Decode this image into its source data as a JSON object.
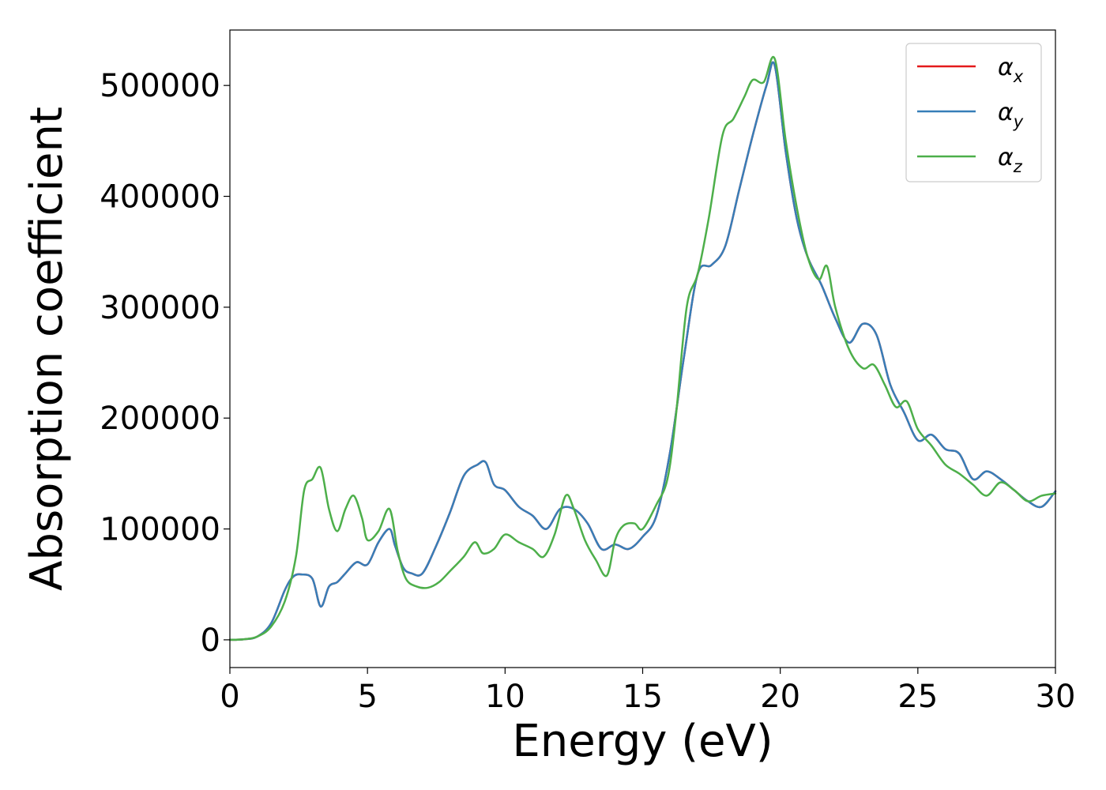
{
  "chart_data": {
    "type": "line",
    "title": "",
    "xlabel": "Energy (eV)",
    "ylabel": "Absorption coefficient",
    "xlim": [
      0,
      30
    ],
    "ylim": [
      -25000,
      550000
    ],
    "xticks": [
      0,
      5,
      10,
      15,
      20,
      25,
      30
    ],
    "xtick_labels": [
      "0",
      "5",
      "10",
      "15",
      "20",
      "25",
      "30"
    ],
    "yticks": [
      0,
      100000,
      200000,
      300000,
      400000,
      500000
    ],
    "ytick_labels": [
      "0",
      "100000",
      "200000",
      "300000",
      "400000",
      "500000"
    ],
    "grid": false,
    "legend_position": "top-right",
    "legend": [
      {
        "base": "α",
        "sub": "x",
        "color": "#e41a1c"
      },
      {
        "base": "α",
        "sub": "y",
        "color": "#377eb8"
      },
      {
        "base": "α",
        "sub": "z",
        "color": "#4daf4a"
      }
    ],
    "series": [
      {
        "name": "αx",
        "color": "#e41a1c",
        "x": [
          0,
          0.5,
          1.0,
          1.5,
          2.0,
          2.3,
          2.6,
          3.0,
          3.3,
          3.6,
          3.9,
          4.2,
          4.6,
          5.0,
          5.4,
          5.8,
          6.0,
          6.3,
          6.6,
          7.0,
          7.5,
          8.0,
          8.5,
          9.0,
          9.3,
          9.6,
          10.0,
          10.5,
          11.0,
          11.5,
          12.0,
          12.5,
          13.0,
          13.5,
          14.0,
          14.5,
          15.0,
          15.5,
          16.0,
          16.5,
          17.0,
          17.5,
          18.0,
          18.5,
          19.0,
          19.5,
          19.8,
          20.2,
          20.6,
          21.0,
          21.5,
          22.0,
          22.5,
          23.0,
          23.5,
          24.0,
          24.5,
          25.0,
          25.5,
          26.0,
          26.5,
          27.0,
          27.5,
          28.0,
          28.5,
          29.0,
          29.5,
          30.0
        ],
        "y": [
          0,
          500,
          3000,
          15000,
          45000,
          57000,
          59000,
          55000,
          30000,
          48000,
          52000,
          60000,
          70000,
          68000,
          88000,
          100000,
          85000,
          65000,
          60000,
          60000,
          85000,
          115000,
          148000,
          158000,
          160000,
          140000,
          135000,
          120000,
          112000,
          100000,
          118000,
          118000,
          105000,
          82000,
          86000,
          82000,
          93000,
          112000,
          170000,
          255000,
          330000,
          338000,
          355000,
          405000,
          455000,
          500000,
          518000,
          440000,
          380000,
          345000,
          320000,
          290000,
          268000,
          285000,
          275000,
          230000,
          205000,
          180000,
          185000,
          172000,
          168000,
          145000,
          152000,
          145000,
          135000,
          125000,
          120000,
          134000
        ]
      },
      {
        "name": "αy",
        "color": "#377eb8",
        "x": [
          0,
          0.5,
          1.0,
          1.5,
          2.0,
          2.3,
          2.6,
          3.0,
          3.3,
          3.6,
          3.9,
          4.2,
          4.6,
          5.0,
          5.4,
          5.8,
          6.0,
          6.3,
          6.6,
          7.0,
          7.5,
          8.0,
          8.5,
          9.0,
          9.3,
          9.6,
          10.0,
          10.5,
          11.0,
          11.5,
          12.0,
          12.5,
          13.0,
          13.5,
          14.0,
          14.5,
          15.0,
          15.5,
          16.0,
          16.5,
          17.0,
          17.5,
          18.0,
          18.5,
          19.0,
          19.5,
          19.8,
          20.2,
          20.6,
          21.0,
          21.5,
          22.0,
          22.5,
          23.0,
          23.5,
          24.0,
          24.5,
          25.0,
          25.5,
          26.0,
          26.5,
          27.0,
          27.5,
          28.0,
          28.5,
          29.0,
          29.5,
          30.0
        ],
        "y": [
          0,
          500,
          3000,
          15000,
          45000,
          57000,
          59000,
          55000,
          30000,
          48000,
          52000,
          60000,
          70000,
          68000,
          88000,
          100000,
          85000,
          65000,
          60000,
          60000,
          85000,
          115000,
          148000,
          158000,
          160000,
          140000,
          135000,
          120000,
          112000,
          100000,
          118000,
          118000,
          105000,
          82000,
          86000,
          82000,
          93000,
          112000,
          170000,
          255000,
          330000,
          338000,
          355000,
          405000,
          455000,
          500000,
          518000,
          440000,
          380000,
          345000,
          320000,
          290000,
          268000,
          285000,
          275000,
          230000,
          205000,
          180000,
          185000,
          172000,
          168000,
          145000,
          152000,
          145000,
          135000,
          125000,
          120000,
          134000
        ]
      },
      {
        "name": "αz",
        "color": "#4daf4a",
        "x": [
          0,
          0.5,
          1.0,
          1.5,
          2.0,
          2.4,
          2.7,
          3.0,
          3.3,
          3.6,
          3.9,
          4.2,
          4.5,
          4.8,
          5.0,
          5.4,
          5.8,
          6.1,
          6.4,
          6.8,
          7.2,
          7.6,
          8.0,
          8.5,
          8.9,
          9.2,
          9.6,
          10.0,
          10.5,
          11.0,
          11.4,
          11.8,
          12.2,
          12.5,
          12.9,
          13.3,
          13.7,
          14.0,
          14.3,
          14.7,
          15.0,
          15.5,
          15.9,
          16.2,
          16.6,
          17.0,
          17.4,
          17.9,
          18.3,
          18.7,
          19.0,
          19.4,
          19.8,
          20.2,
          20.6,
          21.0,
          21.4,
          21.7,
          22.0,
          22.5,
          23.0,
          23.4,
          23.8,
          24.2,
          24.6,
          25.0,
          25.5,
          26.0,
          26.5,
          27.0,
          27.5,
          28.0,
          28.5,
          29.0,
          29.5,
          30.0
        ],
        "y": [
          0,
          500,
          3000,
          12000,
          35000,
          75000,
          135000,
          145000,
          155000,
          118000,
          98000,
          118000,
          130000,
          110000,
          90000,
          98000,
          118000,
          80000,
          55000,
          48000,
          47000,
          52000,
          62000,
          75000,
          88000,
          78000,
          82000,
          95000,
          88000,
          82000,
          75000,
          95000,
          130000,
          118000,
          90000,
          72000,
          58000,
          90000,
          103000,
          105000,
          100000,
          122000,
          145000,
          200000,
          300000,
          330000,
          380000,
          455000,
          470000,
          490000,
          505000,
          503000,
          524000,
          450000,
          390000,
          345000,
          325000,
          337000,
          300000,
          262000,
          245000,
          248000,
          230000,
          210000,
          215000,
          190000,
          175000,
          158000,
          150000,
          140000,
          130000,
          142000,
          135000,
          125000,
          130000,
          132000
        ]
      }
    ]
  }
}
